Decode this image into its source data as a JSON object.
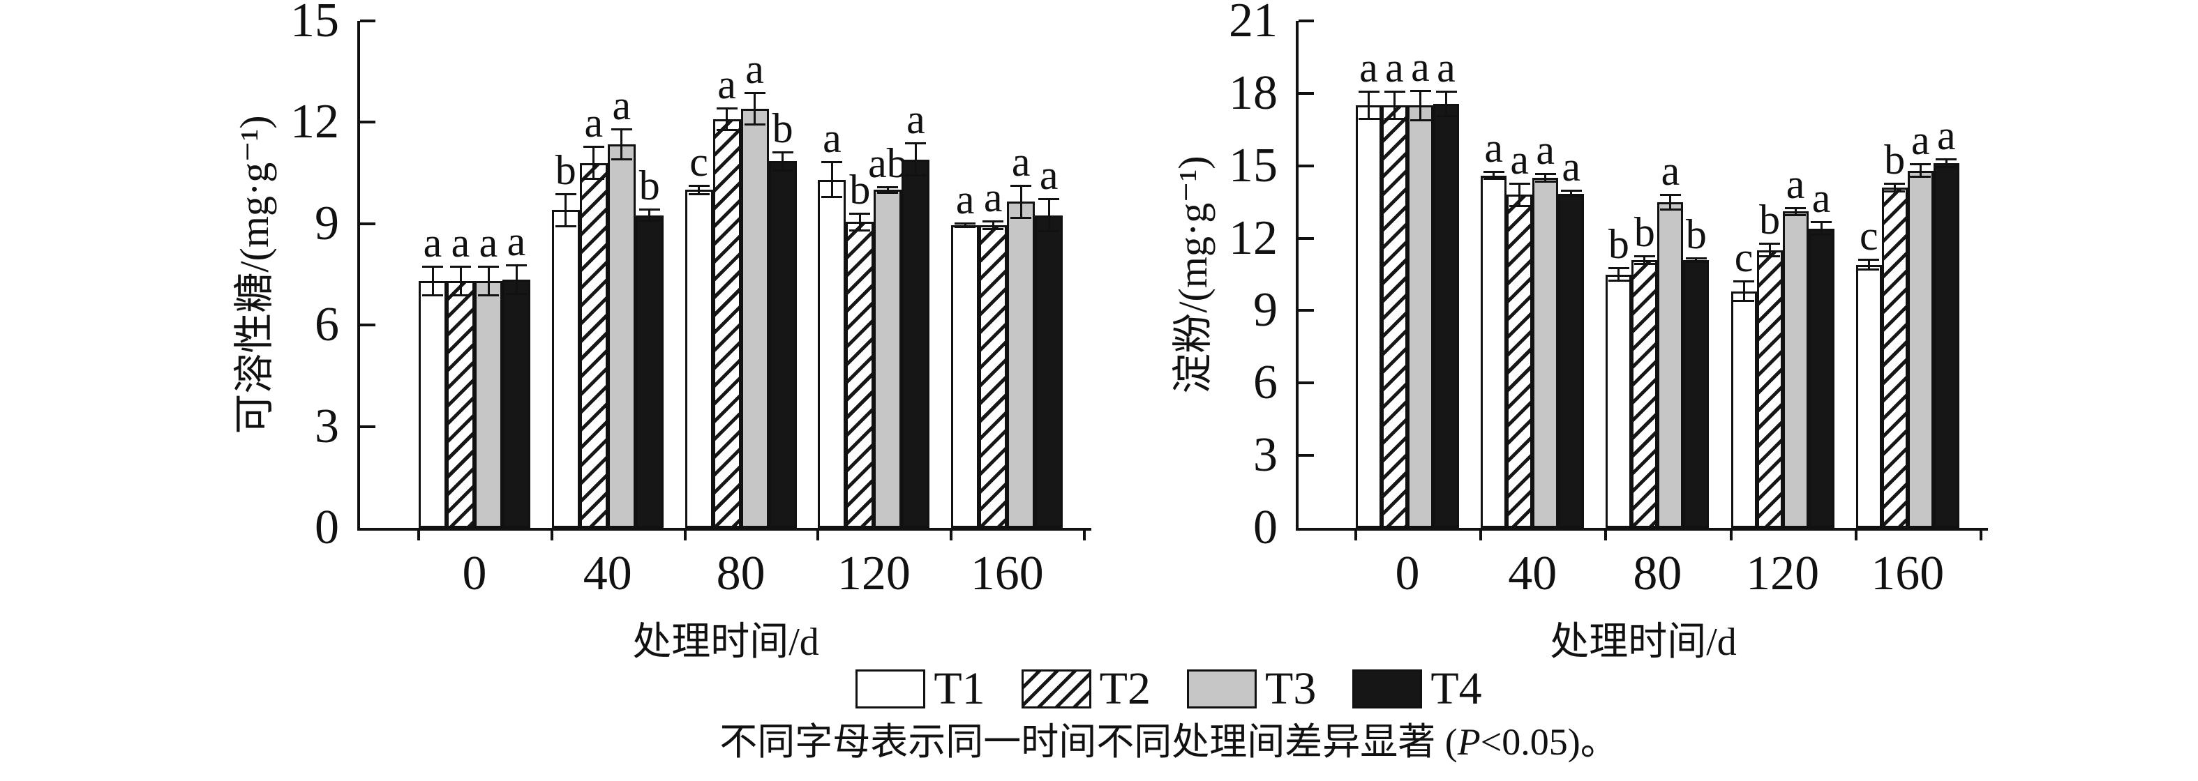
{
  "figure": {
    "colors": {
      "ink": "#111111",
      "gray": "#c6c6c6",
      "black": "#161616",
      "white": "#ffffff"
    },
    "legend": {
      "items": [
        {
          "label": "T1",
          "fill": "white"
        },
        {
          "label": "T2",
          "fill": "hatch"
        },
        {
          "label": "T3",
          "fill": "gray"
        },
        {
          "label": "T4",
          "fill": "black"
        }
      ]
    },
    "caption": {
      "prefix": "不同字母表示同一时间不同处理间差异显著 (",
      "italic": "P",
      "suffix": "<0.05)。"
    }
  },
  "chart_data": [
    {
      "type": "bar",
      "title": "",
      "ylabel": "可溶性糖/(mg·g⁻¹)",
      "xlabel": "处理时间/d",
      "ylim": [
        0,
        15
      ],
      "yticks": [
        0,
        3,
        6,
        9,
        12,
        15
      ],
      "grid": false,
      "categories": [
        "0",
        "40",
        "80",
        "120",
        "160"
      ],
      "series": [
        {
          "name": "T1",
          "fill": "white",
          "values": [
            7.3,
            9.4,
            10.0,
            10.3,
            8.95
          ],
          "errors": [
            0.45,
            0.5,
            0.15,
            0.55,
            0.08
          ],
          "letters": [
            "a",
            "b",
            "c",
            "a",
            "a"
          ]
        },
        {
          "name": "T2",
          "fill": "hatch",
          "values": [
            7.3,
            10.8,
            12.1,
            9.05,
            8.95
          ],
          "errors": [
            0.45,
            0.5,
            0.35,
            0.28,
            0.15
          ],
          "letters": [
            "a",
            "a",
            "a",
            "b",
            "a"
          ]
        },
        {
          "name": "T3",
          "fill": "gray",
          "values": [
            7.3,
            11.35,
            12.4,
            10.0,
            9.65
          ],
          "errors": [
            0.45,
            0.48,
            0.5,
            0.12,
            0.5
          ],
          "letters": [
            "a",
            "a",
            "a",
            "ab",
            "a"
          ]
        },
        {
          "name": "T4",
          "fill": "black",
          "values": [
            7.35,
            9.25,
            10.85,
            10.9,
            9.25
          ],
          "errors": [
            0.45,
            0.2,
            0.3,
            0.5,
            0.5
          ],
          "letters": [
            "a",
            "b",
            "b",
            "a",
            "a"
          ]
        }
      ]
    },
    {
      "type": "bar",
      "title": "",
      "ylabel": "淀粉/(mg·g⁻¹)",
      "xlabel": "处理时间/d",
      "ylim": [
        0,
        21
      ],
      "yticks": [
        0,
        3,
        6,
        9,
        12,
        15,
        18,
        21
      ],
      "grid": false,
      "categories": [
        "0",
        "40",
        "80",
        "120",
        "160"
      ],
      "series": [
        {
          "name": "T1",
          "fill": "white",
          "values": [
            17.5,
            14.6,
            10.5,
            9.8,
            10.9
          ],
          "errors": [
            0.6,
            0.2,
            0.3,
            0.45,
            0.25
          ],
          "letters": [
            "a",
            "a",
            "b",
            "c",
            "c"
          ]
        },
        {
          "name": "T2",
          "fill": "hatch",
          "values": [
            17.5,
            13.8,
            11.1,
            11.5,
            14.1
          ],
          "errors": [
            0.6,
            0.5,
            0.2,
            0.3,
            0.2
          ],
          "letters": [
            "a",
            "a",
            "b",
            "b",
            "b"
          ]
        },
        {
          "name": "T3",
          "fill": "gray",
          "values": [
            17.5,
            14.5,
            13.5,
            13.1,
            14.8
          ],
          "errors": [
            0.65,
            0.2,
            0.35,
            0.2,
            0.3
          ],
          "letters": [
            "a",
            "a",
            "a",
            "a",
            "a"
          ]
        },
        {
          "name": "T4",
          "fill": "black",
          "values": [
            17.55,
            13.85,
            11.1,
            12.4,
            15.1
          ],
          "errors": [
            0.55,
            0.15,
            0.12,
            0.3,
            0.2
          ],
          "letters": [
            "a",
            "a",
            "b",
            "a",
            "a"
          ]
        }
      ]
    }
  ]
}
